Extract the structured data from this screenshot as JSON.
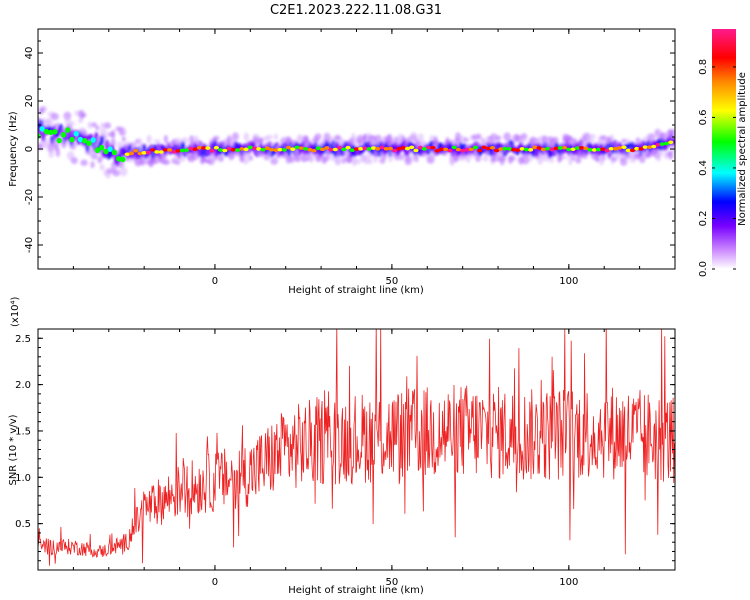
{
  "title": "C2E1.2023.222.11.08.G31",
  "chart_data": [
    {
      "type": "heatmap",
      "title": "C2E1.2023.222.11.08.G31",
      "xlabel": "Height of straight line (km)",
      "ylabel": "Frequency (Hz)",
      "xlim": [
        -50,
        130
      ],
      "ylim": [
        -50,
        50
      ],
      "x_ticks": [
        "0",
        "50",
        "100"
      ],
      "y_ticks": [
        "-40",
        "-20",
        "0",
        "20",
        "40"
      ],
      "colorbar": {
        "label": "Normalized spectral amplitude",
        "range": [
          0,
          0.95
        ],
        "ticks": [
          "0.0",
          "0.2",
          "0.4",
          "0.6",
          "0.8"
        ],
        "colormap": [
          "#cc88ff",
          "#7700ff",
          "#0000ff",
          "#00ffff",
          "#00ff00",
          "#ffff00",
          "#ff8800",
          "#ff0000",
          "#ff1a8c"
        ]
      },
      "ridge_centerline": [
        {
          "x": -50,
          "y": 8
        },
        {
          "x": -40,
          "y": 5
        },
        {
          "x": -35,
          "y": 3
        },
        {
          "x": -28,
          "y": -2
        },
        {
          "x": -20,
          "y": -1
        },
        {
          "x": 0,
          "y": 0
        },
        {
          "x": 50,
          "y": 0
        },
        {
          "x": 100,
          "y": 0
        },
        {
          "x": 120,
          "y": 0
        },
        {
          "x": 130,
          "y": 3
        }
      ],
      "grid": false
    },
    {
      "type": "line",
      "xlabel": "Height of straight line (km)",
      "ylabel": "SNR (10 * v/v)",
      "y_multiplier": "(x10⁴)",
      "xlim": [
        -50,
        130
      ],
      "ylim": [
        0,
        2.6
      ],
      "x_ticks": [
        "0",
        "50",
        "100"
      ],
      "y_ticks": [
        "0.5",
        "1.0",
        "1.5",
        "2.0",
        "2.5"
      ],
      "color": "#ee2222",
      "trend": [
        {
          "x": -50,
          "y": 0.25
        },
        {
          "x": -40,
          "y": 0.25
        },
        {
          "x": -32,
          "y": 0.2
        },
        {
          "x": -25,
          "y": 0.3
        },
        {
          "x": -20,
          "y": 0.65
        },
        {
          "x": -10,
          "y": 0.85
        },
        {
          "x": 0,
          "y": 0.95
        },
        {
          "x": 10,
          "y": 1.05
        },
        {
          "x": 20,
          "y": 1.3
        },
        {
          "x": 30,
          "y": 1.4
        },
        {
          "x": 50,
          "y": 1.45
        },
        {
          "x": 70,
          "y": 1.5
        },
        {
          "x": 90,
          "y": 1.45
        },
        {
          "x": 110,
          "y": 1.5
        },
        {
          "x": 130,
          "y": 1.4
        }
      ],
      "grid": false
    }
  ]
}
